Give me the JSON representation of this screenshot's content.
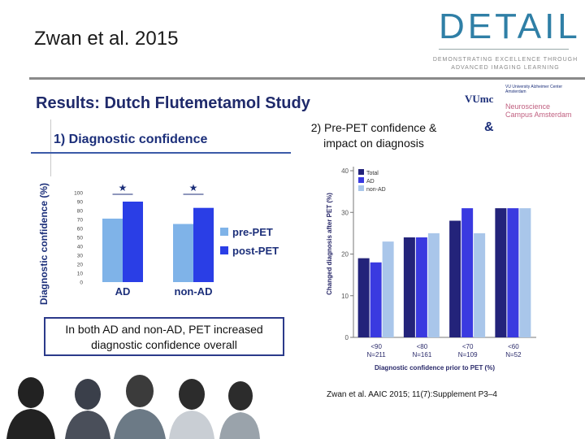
{
  "slide": {
    "title": "Zwan et al. 2015",
    "subtitle": "Results: Dutch Flutemetamol Study",
    "callout": "In both AD and non-AD, PET increased diagnostic confidence overall",
    "citation": "Zwan et al. AAIC 2015; 11(7):Supplement P3–4"
  },
  "logo": {
    "name": "DETAIL",
    "tagline1": "DEMONSTRATING EXCELLENCE THROUGH",
    "tagline2": "ADVANCED IMAGING LEARNING"
  },
  "partner_logo": {
    "name": "VUmc",
    "text1": "VU University Alzheimer Center Amsterdam",
    "text2": "Neuroscience Campus Amsterdam"
  },
  "left_panel": {
    "title": "1) Diagnostic confidence",
    "overlap_text": "&"
  },
  "right_panel": {
    "title_line1": "2) Pre-PET confidence &",
    "title_line2": "impact on diagnosis"
  },
  "chart_data": [
    {
      "type": "bar",
      "ylabel": "Diagnostic confidence (%)",
      "categories": [
        "AD",
        "non-AD"
      ],
      "series": [
        {
          "name": "pre-PET",
          "color": "#7fb3e8",
          "values": [
            71,
            65
          ]
        },
        {
          "name": "post-PET",
          "color": "#2a3ee6",
          "values": [
            90,
            83
          ]
        }
      ],
      "ylim": [
        0,
        100
      ],
      "yticks": [
        0,
        10,
        20,
        30,
        40,
        50,
        60,
        70,
        80,
        90,
        100
      ],
      "significance": [
        "★",
        "★"
      ],
      "legend": "right"
    },
    {
      "type": "bar",
      "xlabel": "Diagnostic confidence prior to PET (%)",
      "ylabel": "Changed diagnosis after PET (%)",
      "categories": [
        "<90",
        "<80",
        "<70",
        "<60"
      ],
      "category_sublabels": [
        "N=211",
        "N=161",
        "N=109",
        "N=52"
      ],
      "series": [
        {
          "name": "Total",
          "color": "#23237a",
          "values": [
            19,
            24,
            28,
            31
          ]
        },
        {
          "name": "AD",
          "color": "#3a3ae0",
          "values": [
            18,
            24,
            31,
            31
          ]
        },
        {
          "name": "non-AD",
          "color": "#a9c6ea",
          "values": [
            23,
            25,
            25,
            31
          ]
        }
      ],
      "ylim": [
        0,
        40
      ],
      "yticks": [
        0,
        10,
        20,
        30,
        40
      ],
      "legend": "top-left"
    }
  ]
}
